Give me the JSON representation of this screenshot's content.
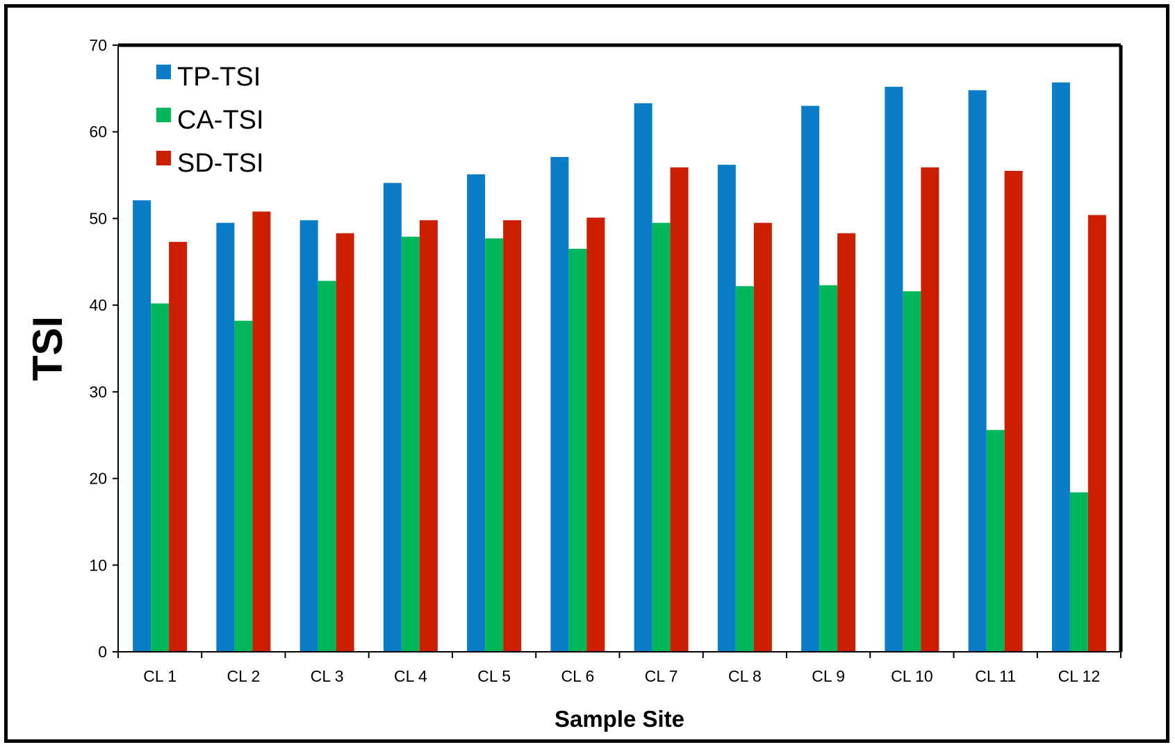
{
  "chart_data": {
    "type": "bar",
    "title": "",
    "xlabel": "Sample Site",
    "ylabel": "TSI",
    "ylim": [
      0,
      70
    ],
    "yticks": [
      0,
      10,
      20,
      30,
      40,
      50,
      60,
      70
    ],
    "categories": [
      "CL 1",
      "CL 2",
      "CL 3",
      "CL 4",
      "CL 5",
      "CL 6",
      "CL 7",
      "CL 8",
      "CL 9",
      "CL 10",
      "CL 11",
      "CL 12"
    ],
    "series": [
      {
        "name": "TP-TSI",
        "color": "#0A7CC8",
        "values": [
          52.1,
          49.5,
          49.8,
          54.1,
          55.1,
          57.1,
          63.3,
          56.2,
          63.0,
          65.2,
          64.8,
          65.7
        ]
      },
      {
        "name": "CA-TSI",
        "color": "#00B75B",
        "values": [
          40.2,
          38.2,
          42.8,
          47.9,
          47.7,
          46.5,
          49.5,
          42.2,
          42.3,
          41.6,
          25.6,
          18.4
        ]
      },
      {
        "name": "SD-TSI",
        "color": "#CC1F00",
        "values": [
          47.3,
          50.8,
          48.3,
          49.8,
          49.8,
          50.1,
          55.9,
          49.5,
          48.3,
          55.9,
          55.5,
          50.4
        ]
      }
    ],
    "legend_position": "top-left",
    "grid": false
  }
}
